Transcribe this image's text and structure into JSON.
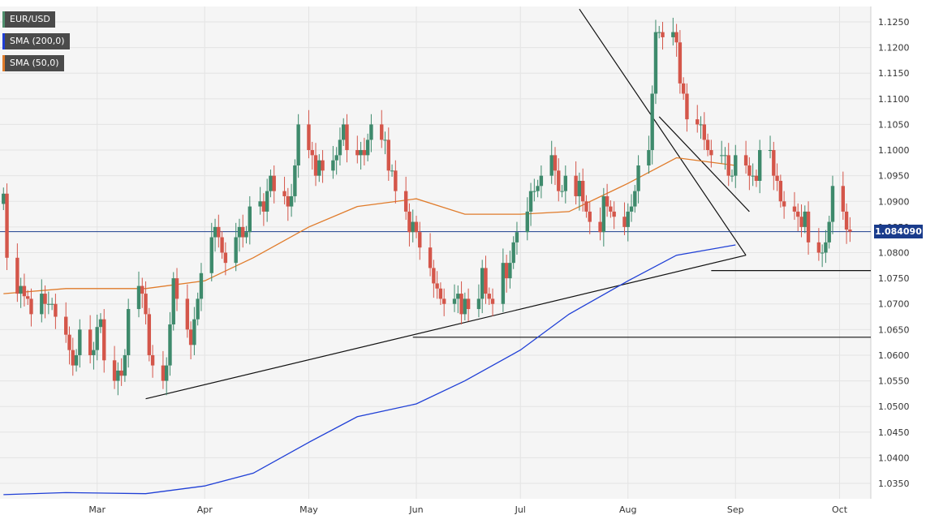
{
  "legend": {
    "symbol": "EUR/USD",
    "sma200": "SMA (200,0)",
    "sma50": "SMA (50,0)"
  },
  "colors": {
    "bull": "#3e8a6c",
    "bear": "#d4564a",
    "sma200": "#1f3fd6",
    "sma50": "#e07b2a",
    "price_line": "#1a3c8c",
    "grid": "#e4e4e4",
    "background": "#f5f5f5"
  },
  "current_price_label": "1.084090",
  "chart_data": {
    "type": "candlestick",
    "title": "",
    "series_names": [
      "EUR/USD",
      "SMA (200,0)",
      "SMA (50,0)"
    ],
    "y_ticks": [
      "1.0350",
      "1.0400",
      "1.0450",
      "1.0500",
      "1.0550",
      "1.0600",
      "1.0650",
      "1.0700",
      "1.0750",
      "1.0800",
      "1.0850",
      "1.0900",
      "1.0950",
      "1.1000",
      "1.1050",
      "1.1100",
      "1.1150",
      "1.1200",
      "1.1250"
    ],
    "x_ticks": [
      "Mar",
      "Apr",
      "May",
      "Jun",
      "Jul",
      "Aug",
      "Sep",
      "Oct"
    ],
    "x_tick_dates": [
      "2023-03-01",
      "2023-04-01",
      "2023-05-01",
      "2023-06-01",
      "2023-07-01",
      "2023-08-01",
      "2023-09-01",
      "2023-10-01"
    ],
    "ylim": [
      1.032,
      1.128
    ],
    "xlim": [
      "2023-02-01",
      "2023-10-10"
    ],
    "current_price": 1.08409,
    "grid": true,
    "start_date": "2023-02-02",
    "candles_close": [
      1.0915,
      1.079,
      1.072,
      1.0735,
      1.0715,
      1.071,
      1.068,
      1.072,
      1.07,
      1.07,
      1.07,
      1.0675,
      1.064,
      1.061,
      1.058,
      1.06,
      1.065,
      1.06,
      1.061,
      1.0655,
      1.067,
      1.059,
      1.055,
      1.057,
      1.056,
      1.06,
      1.069,
      1.0735,
      1.072,
      1.068,
      1.06,
      1.058,
      1.055,
      1.058,
      1.066,
      1.075,
      1.071,
      1.065,
      1.062,
      1.067,
      1.071,
      1.076,
      1.083,
      1.085,
      1.083,
      1.08,
      1.078,
      1.083,
      1.085,
      1.083,
      1.084,
      1.089,
      1.09,
      1.088,
      1.092,
      1.095,
      1.092,
      1.091,
      1.089,
      1.091,
      1.097,
      1.105,
      1.1,
      1.099,
      1.095,
      1.098,
      1.096,
      1.098,
      1.099,
      1.102,
      1.105,
      1.1,
      1.099,
      1.1,
      1.099,
      1.102,
      1.105,
      1.102,
      1.102,
      1.096,
      1.096,
      1.092,
      1.088,
      1.084,
      1.086,
      1.084,
      1.081,
      1.077,
      1.074,
      1.073,
      1.071,
      1.07,
      1.071,
      1.072,
      1.068,
      1.071,
      1.069,
      1.071,
      1.077,
      1.072,
      1.071,
      1.07,
      1.078,
      1.075,
      1.078,
      1.082,
      1.084,
      1.088,
      1.092,
      1.092,
      1.093,
      1.095,
      1.099,
      1.096,
      1.092,
      1.092,
      1.095,
      1.091,
      1.094,
      1.09,
      1.088,
      1.086,
      1.084,
      1.091,
      1.089,
      1.088,
      1.087,
      1.085,
      1.088,
      1.089,
      1.092,
      1.097,
      1.1,
      1.111,
      1.123,
      1.123,
      1.122,
      1.123,
      1.121,
      1.113,
      1.111,
      1.106,
      1.105,
      1.105,
      1.102,
      1.1,
      1.099,
      1.099,
      1.099,
      1.095,
      1.095,
      1.099,
      1.097,
      1.095,
      1.095,
      1.094,
      1.1,
      1.1,
      1.095,
      1.094,
      1.09,
      1.089,
      1.088,
      1.087,
      1.085,
      1.088,
      1.082,
      1.08,
      1.08,
      1.082,
      1.086,
      1.093,
      1.088,
      1.0845,
      1.0841
    ],
    "sma200_approx": [
      [
        "2023-02-02",
        1.0328
      ],
      [
        "2023-02-20",
        1.0332
      ],
      [
        "2023-03-15",
        1.033
      ],
      [
        "2023-04-01",
        1.0345
      ],
      [
        "2023-04-15",
        1.037
      ],
      [
        "2023-05-01",
        1.043
      ],
      [
        "2023-05-15",
        1.048
      ],
      [
        "2023-06-01",
        1.0505
      ],
      [
        "2023-06-15",
        1.055
      ],
      [
        "2023-07-01",
        1.061
      ],
      [
        "2023-07-15",
        1.068
      ],
      [
        "2023-08-01",
        1.0745
      ],
      [
        "2023-08-15",
        1.0795
      ],
      [
        "2023-09-01",
        1.0815
      ]
    ],
    "sma50_approx": [
      [
        "2023-02-02",
        1.072
      ],
      [
        "2023-02-20",
        1.073
      ],
      [
        "2023-03-15",
        1.073
      ],
      [
        "2023-04-01",
        1.0745
      ],
      [
        "2023-04-15",
        1.079
      ],
      [
        "2023-05-01",
        1.085
      ],
      [
        "2023-05-15",
        1.089
      ],
      [
        "2023-06-01",
        1.0905
      ],
      [
        "2023-06-15",
        1.0875
      ],
      [
        "2023-07-01",
        1.0875
      ],
      [
        "2023-07-15",
        1.088
      ],
      [
        "2023-08-01",
        1.0935
      ],
      [
        "2023-08-15",
        1.0985
      ],
      [
        "2023-09-01",
        1.097
      ]
    ],
    "trendlines": [
      {
        "name": "support",
        "from": [
          "2023-03-15",
          1.0515
        ],
        "to": [
          "2023-09-04",
          1.0795
        ]
      },
      {
        "name": "resistance-1",
        "from": [
          "2023-07-18",
          1.1275
        ],
        "to": [
          "2023-09-04",
          1.0795
        ]
      },
      {
        "name": "resistance-2",
        "from": [
          "2023-08-10",
          1.1065
        ],
        "to": [
          "2023-09-05",
          1.088
        ]
      },
      {
        "name": "horizontal-1",
        "from": [
          "2023-05-31",
          1.0635
        ],
        "to": [
          "2023-10-10",
          1.0635
        ]
      },
      {
        "name": "horizontal-2",
        "from": [
          "2023-08-25",
          1.0765
        ],
        "to": [
          "2023-10-10",
          1.0765
        ]
      }
    ]
  }
}
